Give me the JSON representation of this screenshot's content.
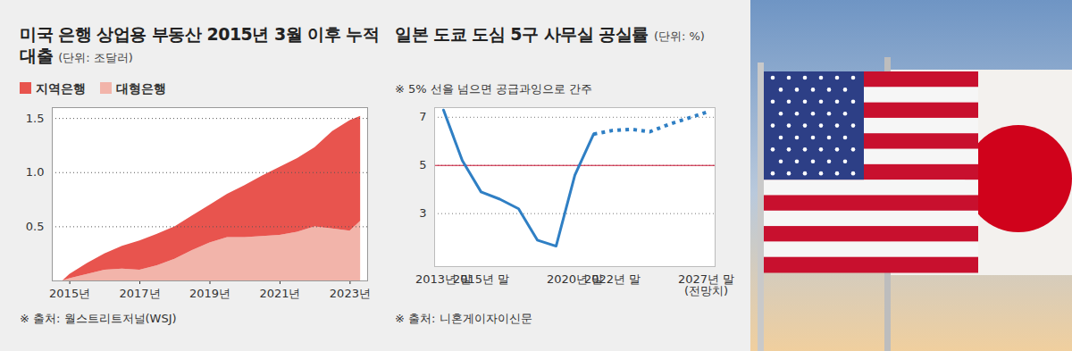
{
  "chart_data": [
    {
      "type": "area",
      "title": "미국 은행 상업용 부동산 2015년 3월 이후 누적 대출",
      "subtitle": "(단위: 조달러)",
      "source": "※ 출처: 월스트리트저널(WSJ)",
      "x": [
        2014.8,
        2015,
        2015.5,
        2016,
        2016.5,
        2017,
        2017.5,
        2018,
        2018.5,
        2019,
        2019.5,
        2020,
        2020.5,
        2021,
        2021.5,
        2022,
        2022.5,
        2023,
        2023.3
      ],
      "series": [
        {
          "name": "지역은행",
          "color": "#e8544e",
          "values": [
            0,
            0.04,
            0.1,
            0.15,
            0.21,
            0.27,
            0.29,
            0.3,
            0.32,
            0.35,
            0.4,
            0.48,
            0.56,
            0.63,
            0.68,
            0.73,
            0.9,
            1.02,
            0.97
          ]
        },
        {
          "name": "대형은행",
          "color": "#f2b4aa",
          "values": [
            0,
            0.02,
            0.06,
            0.1,
            0.11,
            0.1,
            0.14,
            0.2,
            0.28,
            0.35,
            0.4,
            0.4,
            0.41,
            0.42,
            0.45,
            0.5,
            0.48,
            0.46,
            0.55
          ]
        }
      ],
      "stacked": true,
      "legend": "top",
      "grid": true,
      "xlim": [
        2014.5,
        2023.5
      ],
      "xticks": [
        {
          "value": 2015,
          "label": "2015년"
        },
        {
          "value": 2017,
          "label": "2017년"
        },
        {
          "value": 2019,
          "label": "2019년"
        },
        {
          "value": 2021,
          "label": "2021년"
        },
        {
          "value": 2023,
          "label": "2023년"
        }
      ],
      "ylim": [
        0,
        1.6
      ],
      "yticks": [
        0.5,
        {
          "value": 1,
          "label": "1.0"
        },
        1.5
      ]
    },
    {
      "type": "line",
      "title": "일본 도쿄 도심 5구 사무실 공실률",
      "subtitle": "(단위: %)",
      "annotations": [
        {
          "text": "※ 5% 선을 넘으면 공급과잉으로 간주"
        }
      ],
      "source": "※ 출처: 니혼게이자이신문",
      "categories": [
        "2013년 말",
        null,
        "2015년 말",
        null,
        null,
        null,
        null,
        "2020년 말",
        null,
        "2022년 말",
        null,
        null,
        null,
        null,
        "2027년 말\n(전망치)"
      ],
      "series": [
        {
          "color": "#2f7fc4",
          "line_style": "solid",
          "values": [
            7.3,
            5.2,
            3.9,
            3.6,
            3.2,
            1.9,
            1.65,
            4.6,
            6.3,
            null,
            null,
            null,
            null,
            null,
            null
          ]
        },
        {
          "color": "#2f7fc4",
          "line_style": "dotted",
          "values": [
            null,
            null,
            null,
            null,
            null,
            null,
            null,
            null,
            6.3,
            6.45,
            6.5,
            6.4,
            6.7,
            6.95,
            7.2
          ]
        }
      ],
      "reference_line": {
        "y": 5,
        "color": "#c8102e"
      },
      "grid": true,
      "ylim": [
        0.8,
        7.4
      ],
      "yticks": [
        3,
        5,
        7
      ]
    }
  ]
}
